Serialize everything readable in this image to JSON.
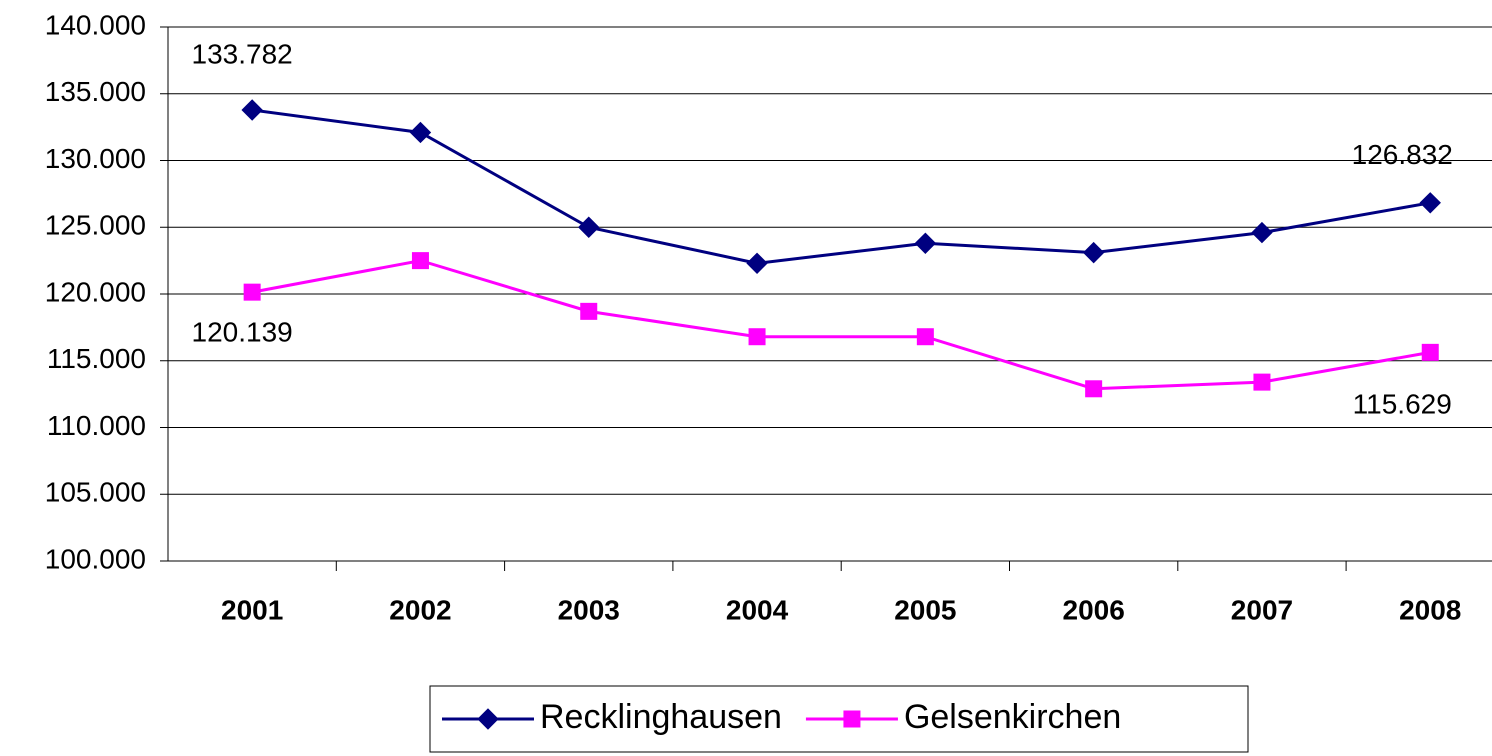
{
  "chart_data": {
    "type": "line",
    "categories": [
      "2001",
      "2002",
      "2003",
      "2004",
      "2005",
      "2006",
      "2007",
      "2008"
    ],
    "series": [
      {
        "name": "Recklinghausen",
        "color": "#000080",
        "marker": "diamond",
        "values": [
          133782,
          132100,
          125000,
          122300,
          123800,
          123100,
          124600,
          126832
        ],
        "value_labels": [
          "133.782",
          null,
          null,
          null,
          null,
          null,
          null,
          "126.832"
        ]
      },
      {
        "name": "Gelsenkirchen",
        "color": "#ff00ff",
        "marker": "square",
        "values": [
          120139,
          122500,
          118700,
          116800,
          116800,
          112900,
          113400,
          115629
        ],
        "value_labels": [
          "120.139",
          null,
          null,
          null,
          null,
          null,
          null,
          "115.629"
        ]
      }
    ],
    "ylim": [
      100000,
      140000
    ],
    "yticks": [
      {
        "value": 100000,
        "label": "100.000"
      },
      {
        "value": 105000,
        "label": "105.000"
      },
      {
        "value": 110000,
        "label": "110.000"
      },
      {
        "value": 115000,
        "label": "115.000"
      },
      {
        "value": 120000,
        "label": "120.000"
      },
      {
        "value": 125000,
        "label": "125.000"
      },
      {
        "value": 130000,
        "label": "130.000"
      },
      {
        "value": 135000,
        "label": "135.000"
      },
      {
        "value": 140000,
        "label": "140.000"
      }
    ],
    "grid": true,
    "legend": "bottom"
  }
}
